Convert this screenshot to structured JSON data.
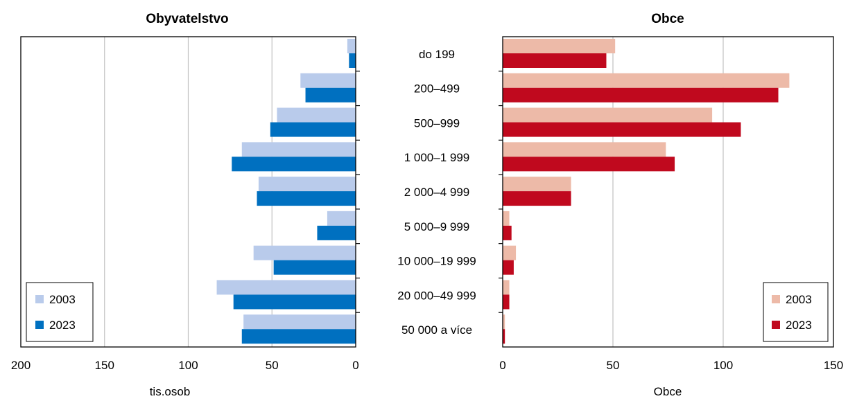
{
  "colors": {
    "left_2003": "#b9cbeb",
    "left_2023": "#0070c0",
    "right_2003": "#edbaa8",
    "right_2023": "#c0091e",
    "grid": "#c0c0c0"
  },
  "categories": [
    "do 199",
    "200–499",
    "500–999",
    "1 000–1 999",
    "2 000–4 999",
    "5 000–9 999",
    "10 000–19 999",
    "20 000–49 999",
    "50 000 a více"
  ],
  "chart_data": [
    {
      "type": "bar",
      "orientation": "horizontal",
      "title": "Obyvatelstvo",
      "xlabel": "tis.osob",
      "x_reversed": true,
      "xlim": [
        0,
        200
      ],
      "xticks": [
        "200",
        "150",
        "100",
        "50",
        "0"
      ],
      "grid": true,
      "legend_position": "bottom-left",
      "categories": [
        "do 199",
        "200–499",
        "500–999",
        "1 000–1 999",
        "2 000–4 999",
        "5 000–9 999",
        "10 000–19 999",
        "20 000–49 999",
        "50 000 a více"
      ],
      "series": [
        {
          "name": "2003",
          "values": [
            5,
            33,
            47,
            68,
            58,
            17,
            61,
            83,
            67
          ]
        },
        {
          "name": "2023",
          "values": [
            4,
            30,
            51,
            74,
            59,
            23,
            49,
            73,
            68
          ]
        }
      ]
    },
    {
      "type": "bar",
      "orientation": "horizontal",
      "title": "Obce",
      "xlabel": "Obce",
      "xlim": [
        0,
        150
      ],
      "xticks": [
        "0",
        "50",
        "100",
        "150"
      ],
      "grid": true,
      "legend_position": "bottom-right",
      "categories": [
        "do 199",
        "200–499",
        "500–999",
        "1 000–1 999",
        "2 000–4 999",
        "5 000–9 999",
        "10 000–19 999",
        "20 000–49 999",
        "50 000 a více"
      ],
      "series": [
        {
          "name": "2003",
          "values": [
            51,
            130,
            95,
            74,
            31,
            3,
            6,
            3,
            1
          ]
        },
        {
          "name": "2023",
          "values": [
            47,
            125,
            108,
            78,
            31,
            4,
            5,
            3,
            1
          ]
        }
      ]
    }
  ]
}
